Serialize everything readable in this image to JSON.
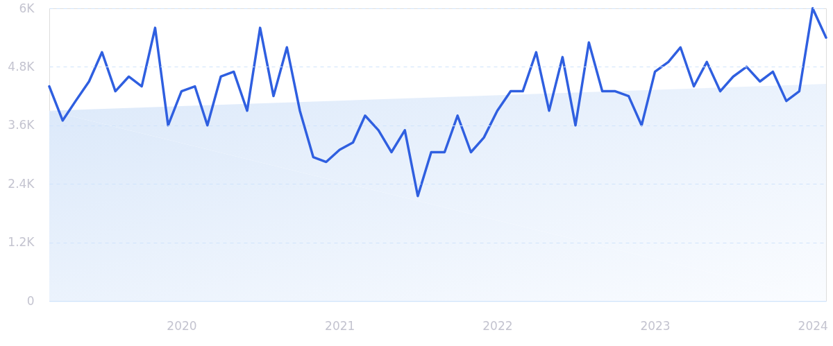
{
  "chart_data": {
    "type": "line",
    "x": [
      "2019-03",
      "2019-04",
      "2019-05",
      "2019-06",
      "2019-07",
      "2019-08",
      "2019-09",
      "2019-10",
      "2019-11",
      "2019-12",
      "2020-01",
      "2020-02",
      "2020-03",
      "2020-04",
      "2020-05",
      "2020-06",
      "2020-07",
      "2020-08",
      "2020-09",
      "2020-10",
      "2020-11",
      "2020-12",
      "2021-01",
      "2021-02",
      "2021-03",
      "2021-04",
      "2021-05",
      "2021-06",
      "2021-07",
      "2021-08",
      "2021-09",
      "2021-10",
      "2021-11",
      "2021-12",
      "2022-01",
      "2022-02",
      "2022-03",
      "2022-04",
      "2022-05",
      "2022-06",
      "2022-07",
      "2022-08",
      "2022-09",
      "2022-10",
      "2022-11",
      "2022-12",
      "2023-01",
      "2023-02",
      "2023-03",
      "2023-04",
      "2023-05",
      "2023-06",
      "2023-07",
      "2023-08",
      "2023-09",
      "2023-10",
      "2023-11",
      "2023-12",
      "2024-01",
      "2024-02"
    ],
    "series": [
      {
        "type": "area",
        "color": "#dce9fa",
        "x": [
          "2019-03",
          "2024-02"
        ],
        "values": [
          3900,
          4450
        ]
      },
      {
        "color": "#2f5fe0",
        "values": [
          4400,
          3700,
          4100,
          4500,
          5100,
          4300,
          4600,
          4400,
          5600,
          3600,
          4300,
          4400,
          3600,
          4600,
          4700,
          3900,
          5600,
          4200,
          5200,
          3900,
          2950,
          2850,
          3100,
          3250,
          3800,
          3500,
          3050,
          3500,
          2150,
          3050,
          3050,
          3800,
          3050,
          3350,
          3900,
          4300,
          4300,
          5100,
          3900,
          5000,
          3600,
          5300,
          4300,
          4300,
          4200,
          3600,
          4700,
          4900,
          5200,
          4400,
          4900,
          4300,
          4600,
          4800,
          4500,
          4700,
          4100,
          4300,
          6000,
          5400
        ]
      }
    ],
    "xlim": [
      "2019-03",
      "2024-02"
    ],
    "xticks": [
      {
        "value": "2020-01",
        "label": "2020"
      },
      {
        "value": "2021-01",
        "label": "2021"
      },
      {
        "value": "2022-01",
        "label": "2022"
      },
      {
        "value": "2023-01",
        "label": "2023"
      },
      {
        "value": "2024-01",
        "label": "2024"
      }
    ],
    "ylim": [
      0,
      6000
    ],
    "yticks": [
      0,
      {
        "value": 1200,
        "label": "1.2K"
      },
      {
        "value": 2400,
        "label": "2.4K"
      },
      {
        "value": 3600,
        "label": "3.6K"
      },
      {
        "value": 4800,
        "label": "4.8K"
      },
      {
        "value": 6000,
        "label": "6K"
      }
    ],
    "grid": "y",
    "line_style": "solid",
    "marker": "none"
  }
}
